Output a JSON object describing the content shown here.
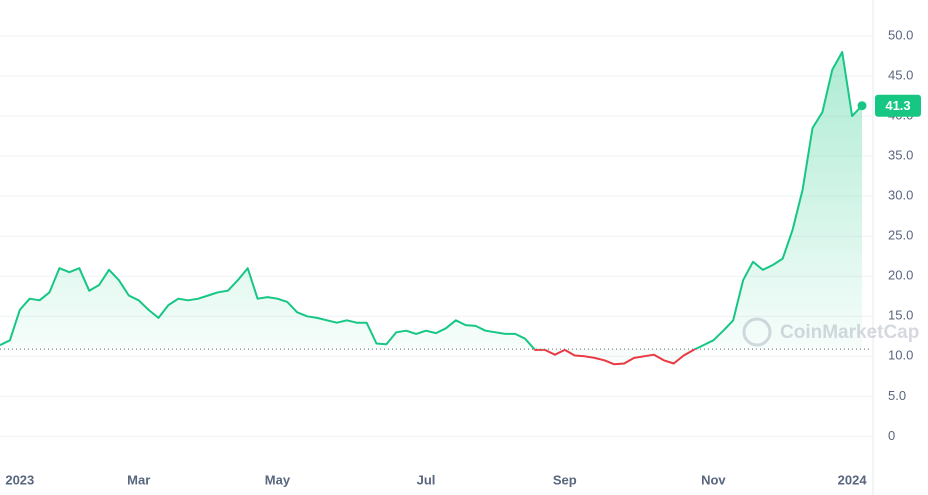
{
  "chart_data": {
    "type": "line",
    "categories": [
      null,
      null,
      "2023",
      null,
      null,
      null,
      null,
      null,
      null,
      null,
      null,
      null,
      null,
      null,
      "Mar",
      null,
      null,
      null,
      null,
      null,
      null,
      null,
      null,
      null,
      null,
      null,
      null,
      null,
      "May",
      null,
      null,
      null,
      null,
      null,
      null,
      null,
      null,
      null,
      null,
      null,
      null,
      null,
      null,
      "Jul",
      null,
      null,
      null,
      null,
      null,
      null,
      null,
      null,
      null,
      null,
      null,
      null,
      null,
      "Sep",
      null,
      null,
      null,
      null,
      null,
      null,
      null,
      null,
      null,
      null,
      null,
      null,
      null,
      null,
      "Nov",
      null,
      null,
      null,
      null,
      null,
      null,
      null,
      null,
      null,
      null,
      null,
      null,
      null,
      "2024",
      null
    ],
    "series": [
      {
        "color": "#16c784",
        "values": [
          11.4,
          12,
          15.8,
          17.2,
          17,
          18,
          21,
          20.5,
          21,
          18.2,
          18.9,
          20.8,
          19.5,
          17.6,
          17,
          15.8,
          14.8,
          16.4,
          17.2,
          17,
          17.2,
          17.6,
          18,
          18.2,
          19.5,
          21,
          17.2,
          17.4,
          17.2,
          16.8,
          15.5,
          15,
          14.8,
          14.5,
          14.2,
          14.5,
          14.2,
          14.2,
          11.6,
          11.5,
          13,
          13.2,
          12.8,
          13.2,
          12.9,
          13.5,
          14.5,
          13.9,
          13.8,
          13.2,
          13,
          12.8,
          12.8,
          12.2,
          10.8,
          10.8,
          10.2,
          10.8,
          10.1,
          10,
          9.8,
          9.5,
          9,
          9.1,
          9.8,
          10,
          10.2,
          9.5,
          9.1,
          10.1,
          10.8,
          11.4,
          12,
          13.2,
          14.5,
          19.5,
          21.8,
          20.8,
          21.4,
          22.2,
          25.8,
          30.8,
          38.5,
          40.5,
          45.8,
          48,
          40,
          41.3
        ]
      }
    ],
    "down_color": "#ea3943",
    "baseline": 10.9,
    "current_value": 41.3,
    "watermark": "CoinMarketCap",
    "ylim": [
      -3.2,
      54.5
    ],
    "yticks": [
      0,
      {
        "value": 5,
        "label": "5.0"
      },
      {
        "value": 10,
        "label": "10.0"
      },
      {
        "value": 15,
        "label": "15.0"
      },
      {
        "value": 20,
        "label": "20.0"
      },
      {
        "value": 25,
        "label": "25.0"
      },
      {
        "value": 30,
        "label": "30.0"
      },
      {
        "value": 35,
        "label": "35.0"
      },
      {
        "value": 40,
        "label": "40.0"
      },
      {
        "value": 45,
        "label": "45.0"
      },
      {
        "value": 50,
        "label": "50.0"
      }
    ],
    "grid": true
  }
}
